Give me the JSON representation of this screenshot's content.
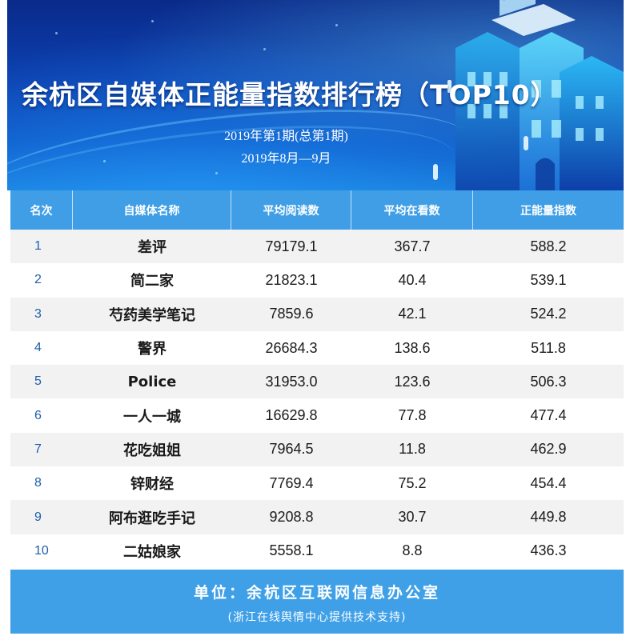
{
  "header": {
    "title": "余杭区自媒体正能量指数排行榜（TOP10）",
    "issue": "2019年第1期(总第1期)",
    "period": "2019年8月—9月"
  },
  "table": {
    "columns": [
      "名次",
      "自媒体名称",
      "平均阅读数",
      "平均在看数",
      "正能量指数"
    ],
    "rows": [
      {
        "rank": "1",
        "name": "差评",
        "avg_reads": "79179.1",
        "avg_views": "367.7",
        "index": "588.2"
      },
      {
        "rank": "2",
        "name": "简二家",
        "avg_reads": "21823.1",
        "avg_views": "40.4",
        "index": "539.1"
      },
      {
        "rank": "3",
        "name": "芍药美学笔记",
        "avg_reads": "7859.6",
        "avg_views": "42.1",
        "index": "524.2"
      },
      {
        "rank": "4",
        "name": "警界",
        "avg_reads": "26684.3",
        "avg_views": "138.6",
        "index": "511.8"
      },
      {
        "rank": "5",
        "name": "Police",
        "avg_reads": "31953.0",
        "avg_views": "123.6",
        "index": "506.3"
      },
      {
        "rank": "6",
        "name": "一人一城",
        "avg_reads": "16629.8",
        "avg_views": "77.8",
        "index": "477.4"
      },
      {
        "rank": "7",
        "name": "花吃姐姐",
        "avg_reads": "7964.5",
        "avg_views": "11.8",
        "index": "462.9"
      },
      {
        "rank": "8",
        "name": "锌财经",
        "avg_reads": "7769.4",
        "avg_views": "75.2",
        "index": "454.4"
      },
      {
        "rank": "9",
        "name": "阿布逛吃手记",
        "avg_reads": "9208.8",
        "avg_views": "30.7",
        "index": "449.8"
      },
      {
        "rank": "10",
        "name": "二姑娘家",
        "avg_reads": "5558.1",
        "avg_views": "8.8",
        "index": "436.3"
      }
    ]
  },
  "footer": {
    "unit": "单位：余杭区互联网信息办公室",
    "support": "(浙江在线舆情中心提供技术支持)"
  },
  "colors": {
    "header_bg": "#3f9ee6",
    "footer_bg": "#3fa0e8",
    "banner_dark": "#0a2a8a",
    "rank_text": "#1f5fa8",
    "stripe": "#f2f2f2"
  }
}
